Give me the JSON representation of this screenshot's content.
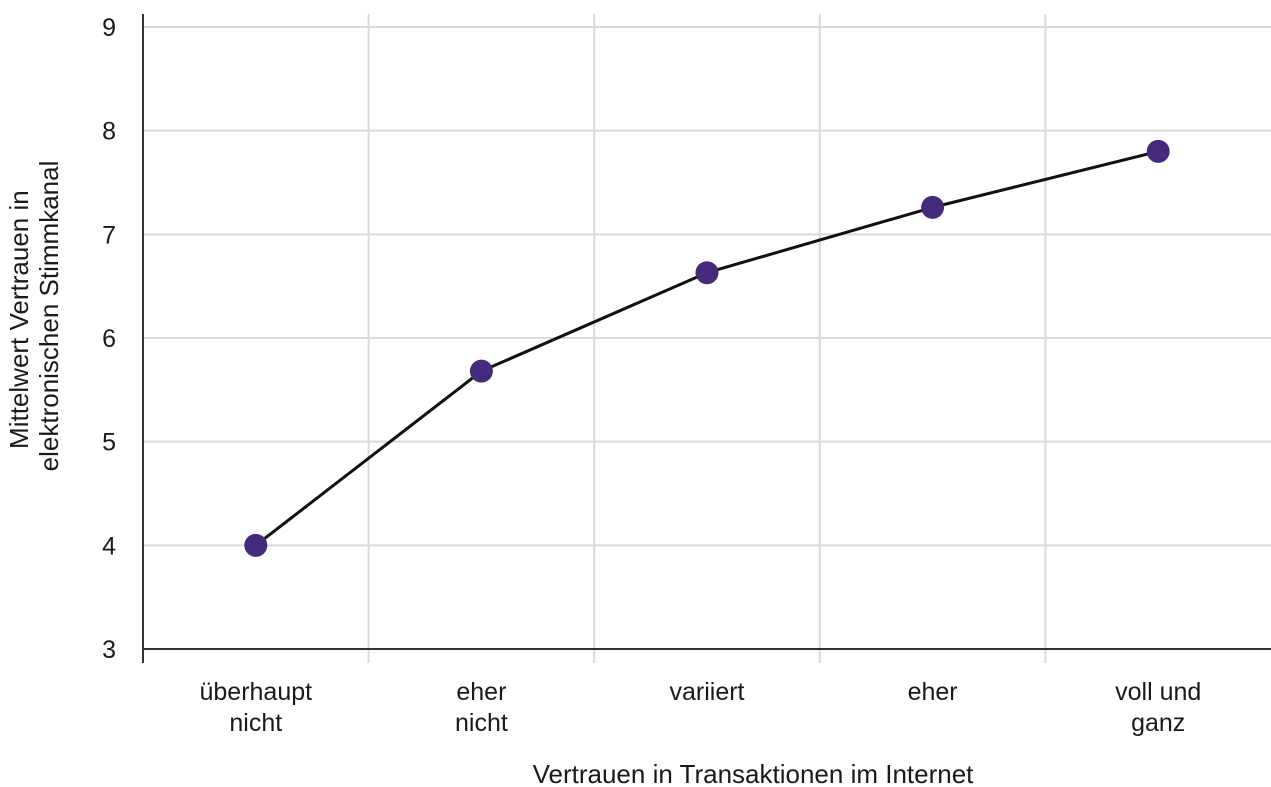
{
  "chart_data": {
    "type": "line",
    "title": "",
    "xlabel": "Vertrauen in Transaktionen im Internet",
    "ylabel_lines": [
      "Mittelwert Vertrauen in",
      "elektronischen Stimmkanal"
    ],
    "categories": [
      [
        "überhaupt",
        "nicht"
      ],
      [
        "eher",
        "nicht"
      ],
      [
        "variiert"
      ],
      [
        "eher"
      ],
      [
        "voll und",
        "ganz"
      ]
    ],
    "series": [
      {
        "values": [
          4.0,
          5.68,
          6.63,
          7.26,
          7.8
        ]
      }
    ],
    "ylim": [
      3,
      9
    ],
    "yticks": [
      3,
      4,
      5,
      6,
      7,
      8,
      9
    ],
    "grid": true,
    "legend": "none",
    "colors": {
      "marker": "#45297a",
      "line": "#111111",
      "grid": "#d9d9d9",
      "axis": "#333333"
    }
  }
}
